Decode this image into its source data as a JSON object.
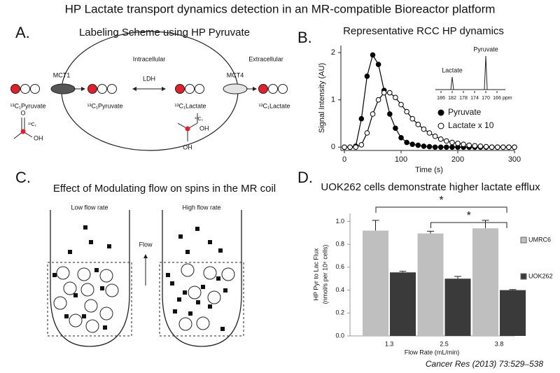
{
  "title": "HP Lactate transport dynamics detection in an MR-compatible Bioreactor platform",
  "panel_a": {
    "label": "A.",
    "title": "Labeling Scheme using HP Pyruvate",
    "intracellular": "Intracellular",
    "extracellular": "Extracellular",
    "mct1": "MCT1",
    "ldh": "LDH",
    "mct4": "MCT4",
    "pyruvate_out": "¹³C₁Pyruvate",
    "pyruvate_in": "¹³C₁Pyruvate",
    "lactate_in": "¹³C₁Lactate",
    "lactate_out": "¹³C₁Lactate",
    "pyruvate_molecule": [
      "O",
      "¹³C₁",
      "OH"
    ],
    "lactate_molecule": [
      "¹³C₁",
      "OH",
      "OH"
    ]
  },
  "chart_data": [
    {
      "type": "scatter",
      "panel_label": "B.",
      "title": "Representative RCC HP dynamics",
      "x_label": "Time (s)",
      "y_label": "Signal Intensity (AU)",
      "x": [
        0,
        10,
        20,
        30,
        40,
        50,
        60,
        70,
        80,
        90,
        100,
        110,
        120,
        130,
        140,
        150,
        160,
        170,
        180,
        190,
        200,
        210,
        220,
        230,
        240,
        250,
        260,
        270,
        280,
        290,
        300
      ],
      "series": [
        {
          "name": "Pyruvate",
          "color": "#000000",
          "filled": true,
          "fit_line": true,
          "values": [
            0,
            0,
            0.02,
            0.6,
            1.5,
            1.95,
            1.75,
            1.2,
            0.7,
            0.4,
            0.2,
            0.1,
            0.06,
            0.04,
            0.02,
            0.01,
            0,
            0,
            0,
            0,
            0,
            0,
            0,
            0,
            0,
            0,
            0,
            0,
            0,
            0,
            0
          ]
        },
        {
          "name": "Lactate x 10",
          "color": "#000000",
          "filled": false,
          "fit_line": true,
          "values": [
            0,
            0,
            0,
            0.05,
            0.3,
            0.7,
            1.0,
            1.15,
            1.15,
            1.05,
            0.9,
            0.75,
            0.6,
            0.48,
            0.38,
            0.3,
            0.23,
            0.17,
            0.13,
            0.1,
            0.08,
            0.06,
            0.04,
            0.03,
            0.02,
            0.01,
            0,
            0,
            0,
            0,
            0
          ]
        }
      ],
      "xlim": [
        0,
        300
      ],
      "ylim": [
        -0.07,
        2.15
      ],
      "xticks": [
        0,
        100,
        200,
        300
      ],
      "yticks": [
        0,
        1,
        2
      ],
      "inset": {
        "peak_labels": [
          "Lactate",
          "Pyruvate"
        ],
        "peaks": [
          182,
          170
        ],
        "xlim": [
          188,
          163
        ],
        "xticks": [
          186,
          182,
          178,
          174,
          170,
          166
        ],
        "unit": "ppm"
      }
    },
    {
      "type": "bar",
      "panel_label": "D.",
      "title": "UOK262 cells demonstrate higher lactate efflux",
      "x_label": "Flow Rate (mL/min)",
      "y_label": [
        "HP Pyr to Lac Flux",
        "(nmol/s per 10⁶ cells)"
      ],
      "categories": [
        "1.3",
        "2.5",
        "3.8"
      ],
      "series": [
        {
          "name": "UMRC6",
          "color": "#bfbfbf",
          "values": [
            0.92,
            0.895,
            0.94
          ],
          "errors": [
            0.09,
            0.02,
            0.07
          ]
        },
        {
          "name": "UOK262",
          "color": "#3a3a3a",
          "values": [
            0.555,
            0.5,
            0.4
          ],
          "errors": [
            0.01,
            0.02,
            0.005
          ]
        }
      ],
      "ylim": [
        0,
        1.07
      ],
      "yticks": [
        {
          "value": 0,
          "label": "0.0"
        },
        0.2,
        0.4,
        0.6,
        0.8,
        {
          "value": 1,
          "label": "1.0"
        }
      ],
      "significance": [
        {
          "label": "*",
          "between": [
            0,
            2
          ]
        },
        {
          "label": "*",
          "between": [
            1,
            2
          ]
        }
      ]
    }
  ],
  "panel_c": {
    "label": "C.",
    "title": "Effect of Modulating flow on spins in the MR coil",
    "low": "Low flow rate",
    "high": "High flow rate",
    "flow": "Flow"
  },
  "citation": "Cancer Res (2013) 73:529–538"
}
